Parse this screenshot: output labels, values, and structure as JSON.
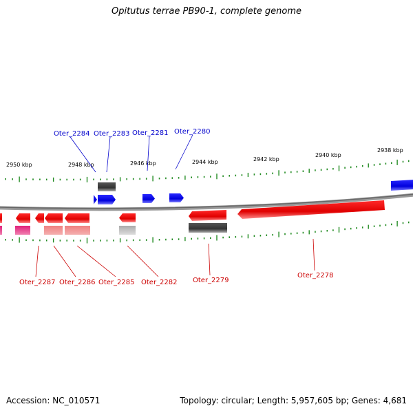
{
  "title": "Opitutus terrae PB90-1, complete genome",
  "footer": {
    "accession": "Accession: NC_010571",
    "summary": "Topology: circular; Length: 5,957,605 bp; Genes: 4,681"
  },
  "colors": {
    "forward_gene": "#0000ee",
    "reverse_gene": "#ee0000",
    "backbone": "#888888",
    "tick": "#228b22",
    "forward_label": "#0000cc",
    "reverse_label": "#cc0000"
  },
  "scale_labels": [
    "2950 kbp",
    "2948 kbp",
    "2946 kbp",
    "2944 kbp",
    "2942 kbp",
    "2940 kbp",
    "2938 kbp"
  ],
  "forward_labels": [
    "Oter_2284",
    "Oter_2283",
    "Oter_2281",
    "Oter_2280"
  ],
  "reverse_labels": [
    "Oter_2287",
    "Oter_2286",
    "Oter_2285",
    "Oter_2282",
    "Oter_2279",
    "Oter_2278"
  ]
}
